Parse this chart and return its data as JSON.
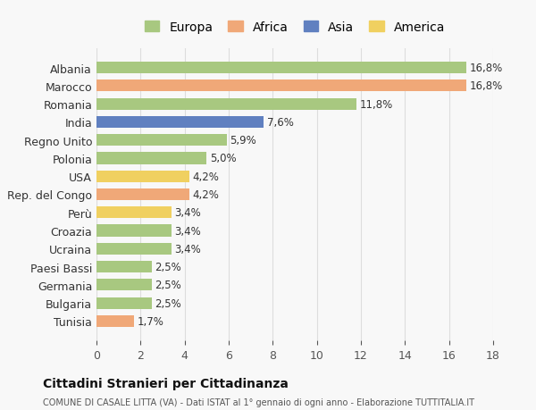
{
  "categories": [
    "Albania",
    "Marocco",
    "Romania",
    "India",
    "Regno Unito",
    "Polonia",
    "USA",
    "Rep. del Congo",
    "Perù",
    "Croazia",
    "Ucraina",
    "Paesi Bassi",
    "Germania",
    "Bulgaria",
    "Tunisia"
  ],
  "values": [
    16.8,
    16.8,
    11.8,
    7.6,
    5.9,
    5.0,
    4.2,
    4.2,
    3.4,
    3.4,
    3.4,
    2.5,
    2.5,
    2.5,
    1.7
  ],
  "labels": [
    "16,8%",
    "16,8%",
    "11,8%",
    "7,6%",
    "5,9%",
    "5,0%",
    "4,2%",
    "4,2%",
    "3,4%",
    "3,4%",
    "3,4%",
    "2,5%",
    "2,5%",
    "2,5%",
    "1,7%"
  ],
  "continent": [
    "Europa",
    "Africa",
    "Europa",
    "Asia",
    "Europa",
    "Europa",
    "America",
    "Africa",
    "America",
    "Europa",
    "Europa",
    "Europa",
    "Europa",
    "Europa",
    "Africa"
  ],
  "colors": {
    "Europa": "#a8c880",
    "Africa": "#f0a878",
    "Asia": "#6080c0",
    "America": "#f0d060"
  },
  "legend_order": [
    "Europa",
    "Africa",
    "Asia",
    "America"
  ],
  "title": "Cittadini Stranieri per Cittadinanza",
  "subtitle": "COMUNE DI CASALE LITTA (VA) - Dati ISTAT al 1° gennaio di ogni anno - Elaborazione TUTTITALIA.IT",
  "xlim": [
    0,
    18
  ],
  "xticks": [
    0,
    2,
    4,
    6,
    8,
    10,
    12,
    14,
    16,
    18
  ],
  "background_color": "#f8f8f8",
  "bar_background": "#ffffff",
  "grid_color": "#dddddd"
}
